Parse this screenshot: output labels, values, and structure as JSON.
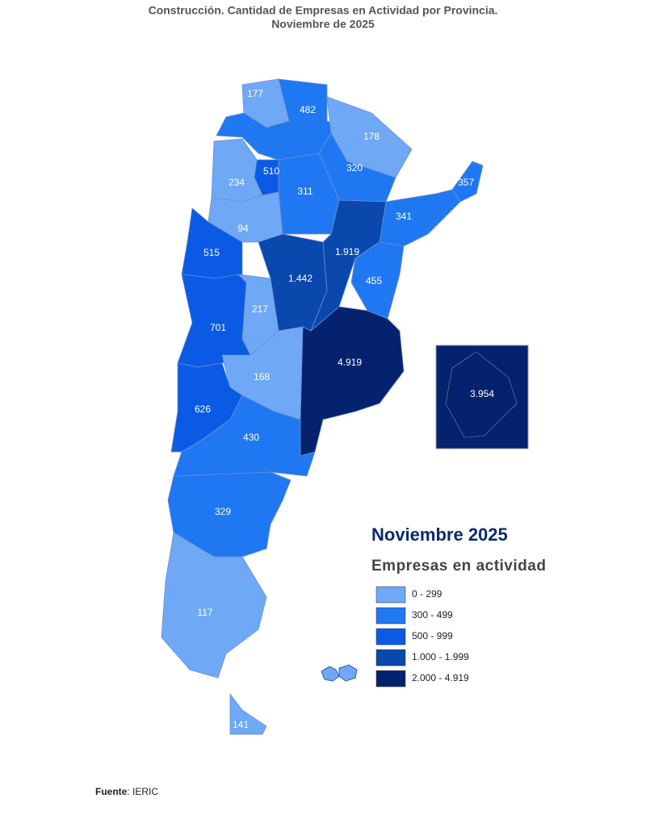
{
  "header": {
    "title": "Construcción. Cantidad de Empresas en Actividad por Provincia.",
    "subtitle": "Noviembre de 2025"
  },
  "map": {
    "regions": [
      {
        "label": "177",
        "color": "#6fa8f5"
      },
      {
        "label": "482",
        "color": "#1f78f2"
      },
      {
        "label": "178",
        "color": "#6fa8f5"
      },
      {
        "label": "320",
        "color": "#1f78f2"
      },
      {
        "label": "510",
        "color": "#0b5ae6"
      },
      {
        "label": "234",
        "color": "#6fa8f5"
      },
      {
        "label": "311",
        "color": "#1f78f2"
      },
      {
        "label": "357",
        "color": "#1f78f2"
      },
      {
        "label": "341",
        "color": "#1f78f2"
      },
      {
        "label": "94",
        "color": "#6fa8f5"
      },
      {
        "label": "515",
        "color": "#0b5ae6"
      },
      {
        "label": "1.442",
        "color": "#0a48ad"
      },
      {
        "label": "1.919",
        "color": "#0a48ad"
      },
      {
        "label": "455",
        "color": "#1f78f2"
      },
      {
        "label": "217",
        "color": "#6fa8f5"
      },
      {
        "label": "701",
        "color": "#0b5ae6"
      },
      {
        "label": "4.919",
        "color": "#04226e"
      },
      {
        "label": "168",
        "color": "#6fa8f5"
      },
      {
        "label": "626",
        "color": "#0b5ae6"
      },
      {
        "label": "430",
        "color": "#1f78f2"
      },
      {
        "label": "329",
        "color": "#1f78f2"
      },
      {
        "label": "117",
        "color": "#6fa8f5"
      },
      {
        "label": "141",
        "color": "#6fa8f5"
      }
    ],
    "inset": {
      "label": "3.954",
      "color": "#04226e"
    }
  },
  "legend": {
    "title": "Noviembre 2025",
    "subtitle": "Empresas en actividad",
    "items": [
      {
        "label": "0 - 299",
        "color": "#6fa8f5"
      },
      {
        "label": "300 - 499",
        "color": "#1f78f2"
      },
      {
        "label": "500 - 999",
        "color": "#0b5ae6"
      },
      {
        "label": "1.000 - 1.999",
        "color": "#0a48ad"
      },
      {
        "label": "2.000 - 4.919",
        "color": "#04226e"
      }
    ]
  },
  "footer": {
    "source_label": "Fuente",
    "source": ": IERIC"
  }
}
